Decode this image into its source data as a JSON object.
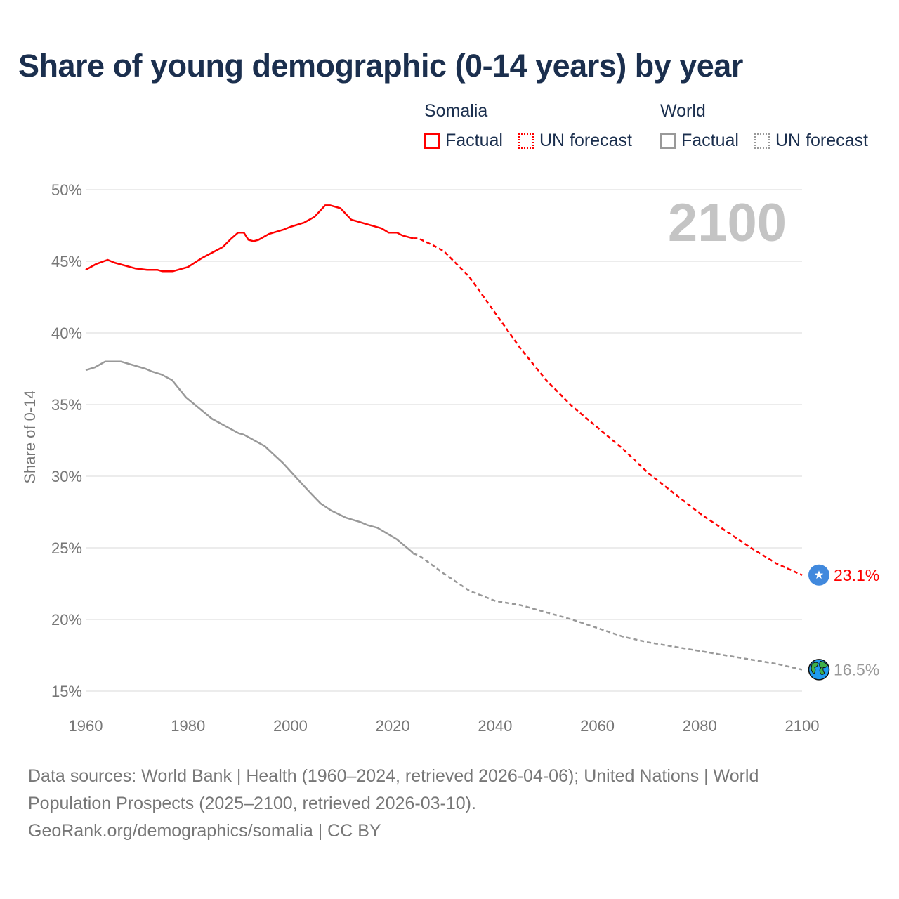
{
  "title": "Share of young demographic (0-14 years) by year",
  "legend": {
    "groups": [
      {
        "name": "Somalia",
        "factual": "Factual",
        "forecast": "UN forecast",
        "color": "#ff0000"
      },
      {
        "name": "World",
        "factual": "Factual",
        "forecast": "UN forecast",
        "color": "#999999"
      }
    ]
  },
  "year_label": "2100",
  "footer": {
    "line1": "Data sources: World Bank | Health (1960–2024, retrieved 2026-04-06); United Nations | World",
    "line2": "Population Prospects (2025–2100, retrieved 2026-03-10).",
    "line3": "GeoRank.org/demographics/somalia | CC BY"
  },
  "chart_data": {
    "type": "line",
    "title": "Share of young demographic (0-14 years) by year",
    "xlabel": "",
    "ylabel": "Share of 0-14",
    "xlim": [
      1960,
      2100
    ],
    "ylim": [
      15,
      50
    ],
    "x_ticks": [
      "1960",
      "1980",
      "2000",
      "2020",
      "2040",
      "2060",
      "2080",
      "2100"
    ],
    "x_tick_values": [
      1960,
      1980,
      2000,
      2020,
      2040,
      2060,
      2080,
      2100
    ],
    "y_ticks": [
      "15%",
      "20%",
      "25%",
      "30%",
      "35%",
      "40%",
      "45%",
      "50%"
    ],
    "y_tick_values": [
      15,
      20,
      25,
      30,
      35,
      40,
      45,
      50
    ],
    "grid": true,
    "series": [
      {
        "name": "Somalia",
        "kind": "Factual",
        "color": "#ff0000",
        "dashed": false,
        "x": [
          1960,
          1962,
          1964.3,
          1965.6,
          1969.7,
          1972,
          1974,
          1975,
          1977,
          1980,
          1982.6,
          1986.8,
          1988.5,
          1989.8,
          1990.9,
          1991.8,
          1992.8,
          1993.8,
          1995.8,
          1998.6,
          2000,
          2002.7,
          2004.7,
          2006.8,
          2007.8,
          2009.8,
          2011.9,
          2017.8,
          2019.2,
          2020.8,
          2021.9,
          2024
        ],
        "y": [
          44.4,
          44.8,
          45.1,
          44.9,
          44.5,
          44.4,
          44.4,
          44.3,
          44.3,
          44.6,
          45.2,
          46.0,
          46.6,
          47.0,
          47.0,
          46.5,
          46.4,
          46.5,
          46.9,
          47.2,
          47.4,
          47.7,
          48.1,
          48.9,
          48.9,
          48.7,
          47.9,
          47.3,
          47.0,
          47.0,
          46.8,
          46.6
        ]
      },
      {
        "name": "Somalia",
        "kind": "UN forecast",
        "color": "#ff0000",
        "dashed": true,
        "x": [
          2024,
          2025,
          2028,
          2030,
          2035,
          2040,
          2045,
          2050,
          2055,
          2060,
          2065,
          2070,
          2075,
          2080,
          2085,
          2090,
          2095,
          2100
        ],
        "y": [
          46.6,
          46.6,
          46.1,
          45.7,
          43.9,
          41.4,
          38.9,
          36.7,
          34.9,
          33.4,
          31.9,
          30.2,
          28.8,
          27.4,
          26.2,
          25.0,
          23.9,
          23.1
        ]
      },
      {
        "name": "World",
        "kind": "Factual",
        "color": "#999999",
        "dashed": false,
        "x": [
          1960,
          1961.8,
          1963.8,
          1966.9,
          1971.7,
          1973,
          1974.8,
          1976.9,
          1979.6,
          1984.7,
          1989.9,
          1990.9,
          1995,
          1996.8,
          1998.6,
          2000.9,
          2004,
          2005.9,
          2008,
          2010.9,
          2013.7,
          2015,
          2017,
          2020.8,
          2023.8,
          2024
        ],
        "y": [
          37.4,
          37.6,
          38.0,
          38.0,
          37.5,
          37.3,
          37.1,
          36.7,
          35.5,
          34.0,
          33.0,
          32.9,
          32.1,
          31.5,
          30.9,
          30.0,
          28.8,
          28.1,
          27.6,
          27.1,
          26.8,
          26.6,
          26.4,
          25.6,
          24.7,
          24.6
        ]
      },
      {
        "name": "World",
        "kind": "UN forecast",
        "color": "#999999",
        "dashed": true,
        "x": [
          2024,
          2025,
          2030,
          2035,
          2040,
          2045,
          2050,
          2055,
          2060,
          2065,
          2070,
          2075,
          2080,
          2085,
          2090,
          2095,
          2100
        ],
        "y": [
          24.6,
          24.5,
          23.2,
          22.0,
          21.3,
          21.0,
          20.5,
          20.0,
          19.4,
          18.8,
          18.4,
          18.1,
          17.8,
          17.5,
          17.2,
          16.9,
          16.5
        ]
      }
    ],
    "end_labels": [
      {
        "series": "Somalia",
        "text": "23.1%",
        "value": 23.1,
        "icon": "somalia-flag",
        "color": "#ff0000"
      },
      {
        "series": "World",
        "text": "16.5%",
        "value": 16.5,
        "icon": "globe",
        "color": "#999999"
      }
    ]
  }
}
